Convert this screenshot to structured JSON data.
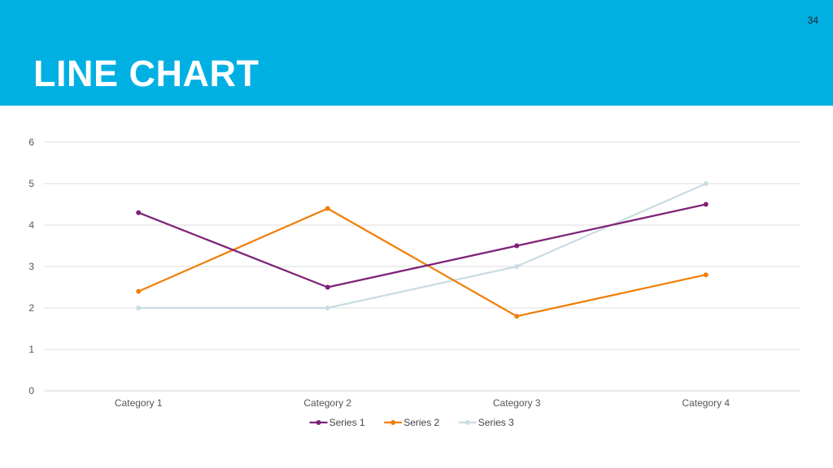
{
  "slide": {
    "title": "LINE CHART",
    "page_number": "34",
    "header_color": "#00B0E3"
  },
  "chart_data": {
    "type": "line",
    "categories": [
      "Category 1",
      "Category 2",
      "Category 3",
      "Category 4"
    ],
    "series": [
      {
        "name": "Series 1",
        "values": [
          4.3,
          2.5,
          3.5,
          4.5
        ],
        "color": "#7E2277"
      },
      {
        "name": "Series 2",
        "values": [
          2.4,
          4.4,
          1.8,
          2.8
        ],
        "color": "#F07F09"
      },
      {
        "name": "Series 3",
        "values": [
          2.0,
          2.0,
          3.0,
          5.0
        ],
        "color": "#C9DDE2"
      }
    ],
    "ylim": [
      0,
      6
    ],
    "yticks": [
      0,
      1,
      2,
      3,
      4,
      5,
      6
    ],
    "grid": true,
    "legend_position": "bottom",
    "title": "",
    "xlabel": "",
    "ylabel": ""
  }
}
